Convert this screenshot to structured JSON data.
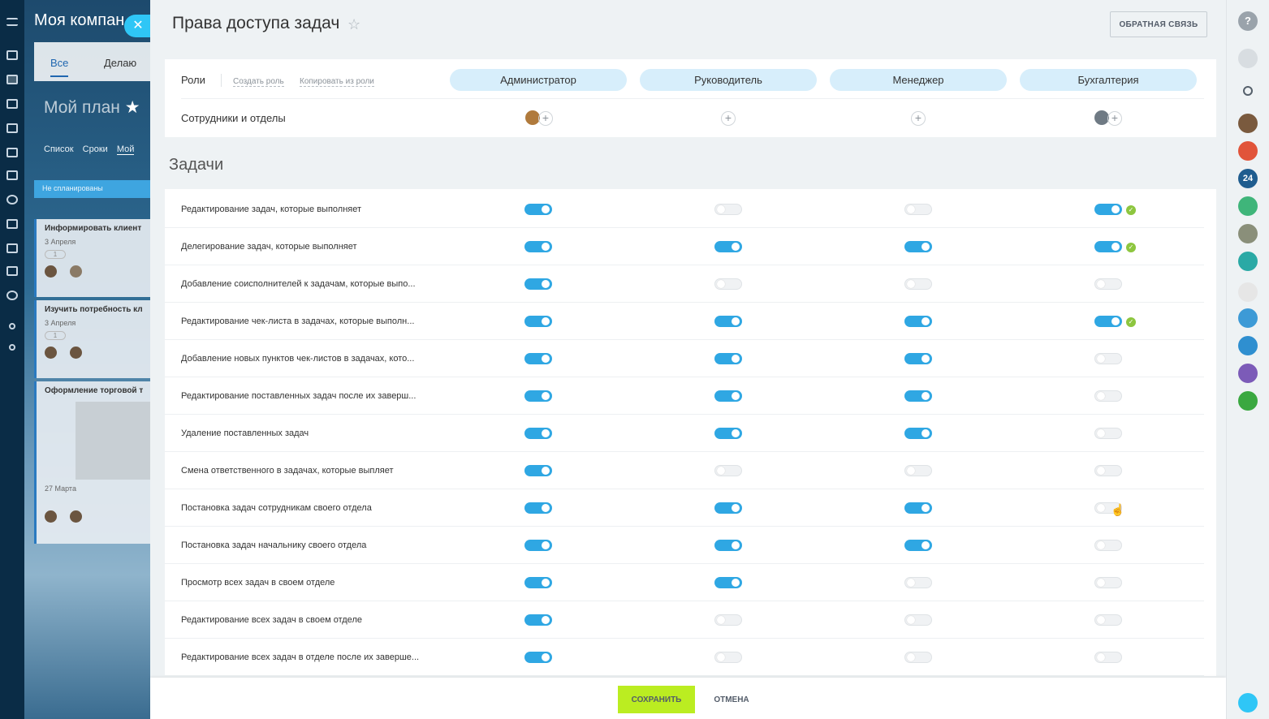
{
  "background_page": {
    "title": "Моя компан",
    "tabs": [
      "Все",
      "Делаю"
    ],
    "plan_title": "Мой план",
    "views": [
      "Список",
      "Сроки",
      "Мой"
    ],
    "column_header": "Не спланированы",
    "cards": [
      {
        "title": "Информировать клиент",
        "date": "3 Апреля"
      },
      {
        "title": "Изучить потребность кл",
        "date": "3 Апреля"
      },
      {
        "title": "Оформление торговой т",
        "date": "27 Марта"
      }
    ]
  },
  "header": {
    "title": "Права доступа задач",
    "feedback_label": "ОБРАТНАЯ СВЯЗЬ"
  },
  "roles": {
    "label": "Роли",
    "create_link": "Создать роль",
    "copy_link": "Копировать из роли",
    "items": [
      "Администратор",
      "Руководитель",
      "Менеджер",
      "Бухгалтерия"
    ]
  },
  "employees": {
    "label": "Сотрудники и отделы"
  },
  "section": {
    "title": "Задачи"
  },
  "permissions": [
    {
      "label": "Редактирование задач, которые выполняет",
      "values": [
        true,
        false,
        false,
        true
      ],
      "changed": [
        false,
        false,
        false,
        true
      ]
    },
    {
      "label": "Делегирование задач, которые выполняет",
      "values": [
        true,
        true,
        true,
        true
      ],
      "changed": [
        false,
        false,
        false,
        true
      ]
    },
    {
      "label": "Добавление соисполнителей к задачам, которые выпо...",
      "values": [
        true,
        false,
        false,
        false
      ],
      "changed": [
        false,
        false,
        false,
        false
      ]
    },
    {
      "label": "Редактирование чек-листа в задачах, которые выполн...",
      "values": [
        true,
        true,
        true,
        true
      ],
      "changed": [
        false,
        false,
        false,
        true
      ]
    },
    {
      "label": "Добавление новых пунктов чек-листов в задачах, кото...",
      "values": [
        true,
        true,
        true,
        false
      ],
      "changed": [
        false,
        false,
        false,
        false
      ]
    },
    {
      "label": "Редактирование поставленных задач после их заверш...",
      "values": [
        true,
        true,
        true,
        false
      ],
      "changed": [
        false,
        false,
        false,
        false
      ]
    },
    {
      "label": "Удаление поставленных задач",
      "values": [
        true,
        true,
        true,
        false
      ],
      "changed": [
        false,
        false,
        false,
        false
      ]
    },
    {
      "label": "Смена ответственного в задачах, которые выпляет",
      "values": [
        true,
        false,
        false,
        false
      ],
      "changed": [
        false,
        false,
        false,
        false
      ]
    },
    {
      "label": "Постановка задач сотрудникам своего отдела",
      "values": [
        true,
        true,
        true,
        false
      ],
      "changed": [
        false,
        false,
        false,
        false
      ]
    },
    {
      "label": "Постановка задач начальнику своего отдела",
      "values": [
        true,
        true,
        true,
        false
      ],
      "changed": [
        false,
        false,
        false,
        false
      ]
    },
    {
      "label": "Просмотр всех задач в своем отделе",
      "values": [
        true,
        true,
        false,
        false
      ],
      "changed": [
        false,
        false,
        false,
        false
      ]
    },
    {
      "label": "Редактирование всех задач в своем отделе",
      "values": [
        true,
        false,
        false,
        false
      ],
      "changed": [
        false,
        false,
        false,
        false
      ]
    },
    {
      "label": "Редактирование всех задач в отделе после их заверше...",
      "values": [
        true,
        false,
        false,
        false
      ],
      "changed": [
        false,
        false,
        false,
        false
      ]
    }
  ],
  "footer": {
    "save_label": "СОХРАНИТЬ",
    "cancel_label": "ОТМЕНА"
  },
  "right_panel": {
    "badge_24": "24",
    "help": "?"
  },
  "colors": {
    "accent": "#2fa7e3",
    "save": "#bbed21",
    "role_pill": "#d7eefb",
    "check": "#8dc63f"
  }
}
